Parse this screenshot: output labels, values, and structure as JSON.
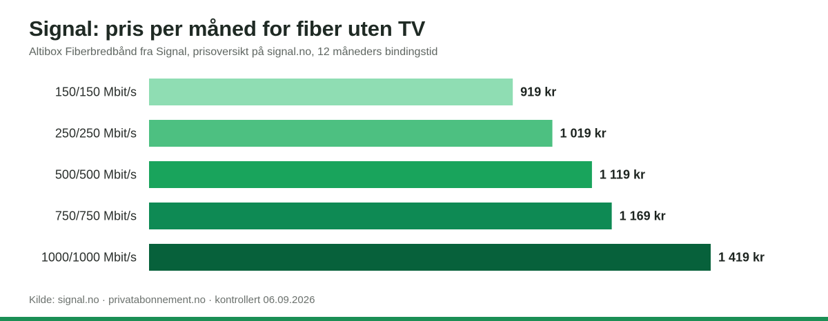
{
  "title": "Signal: pris per måned for fiber uten TV",
  "subtitle": "Altibox Fiberbredbånd fra Signal, prisoversikt på signal.no, 12 måneders bindingstid",
  "source": "Kilde: signal.no · privatabonnement.no · kontrollert 06.09.2026",
  "colors": {
    "bars": [
      "#8fddb3",
      "#4dc081",
      "#19a45c",
      "#0e8a54",
      "#07613b"
    ],
    "bottom_rule": "#1b8f55"
  },
  "chart_data": {
    "type": "bar",
    "orientation": "horizontal",
    "title": "Signal: pris per måned for fiber uten TV",
    "subtitle": "Altibox Fiberbredbånd fra Signal, prisoversikt på signal.no, 12 måneders bindingstid",
    "categories": [
      "150/150 Mbit/s",
      "250/250 Mbit/s",
      "500/500 Mbit/s",
      "750/750 Mbit/s",
      "1000/1000 Mbit/s"
    ],
    "values": [
      919,
      1019,
      1119,
      1169,
      1419
    ],
    "value_labels": [
      "919 kr",
      "1 019 kr",
      "1 119 kr",
      "1 169 kr",
      "1 419 kr"
    ],
    "xlim": [
      0,
      1419
    ],
    "grid": false,
    "legend": "none"
  }
}
